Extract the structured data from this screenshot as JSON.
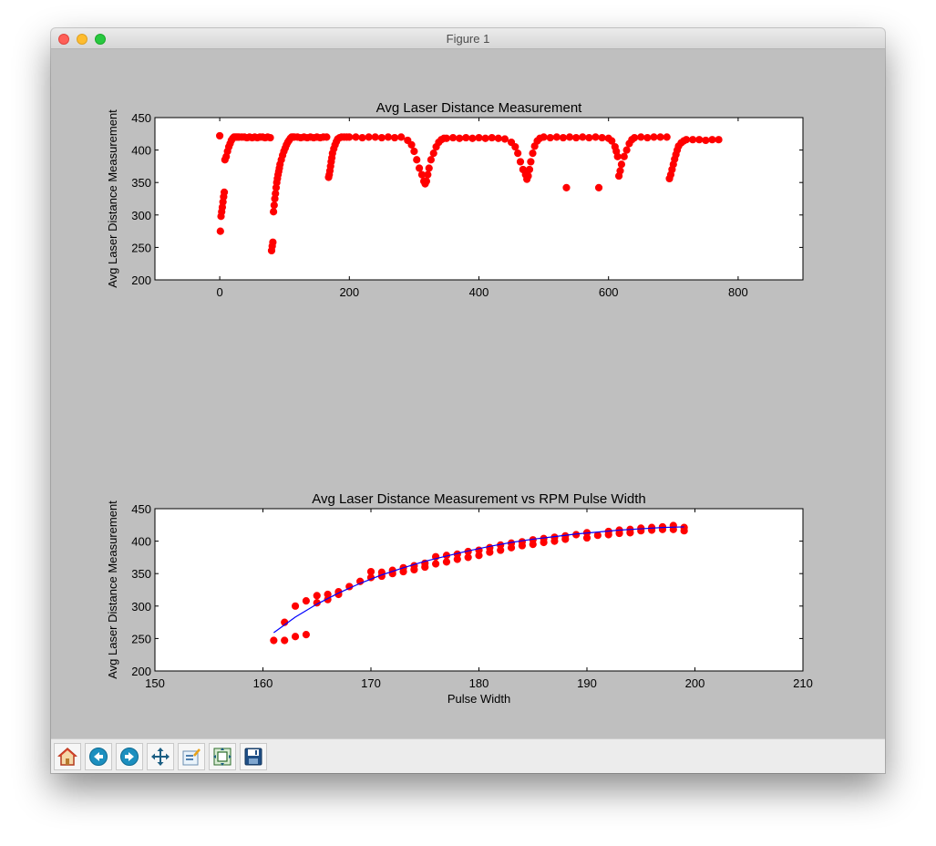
{
  "window": {
    "title": "Figure 1",
    "traffic_lights": {
      "close": "#ff5f57",
      "minimize": "#febc2e",
      "zoom": "#28c840"
    }
  },
  "colors": {
    "figure_bg": "#bfbfbf",
    "axes_bg": "#ffffff",
    "marker": "#ff0000",
    "fit_line": "#0000ff"
  },
  "toolbar": {
    "buttons": [
      {
        "name": "home",
        "icon": "home-icon"
      },
      {
        "name": "back",
        "icon": "back-arrow-icon"
      },
      {
        "name": "forward",
        "icon": "forward-arrow-icon"
      },
      {
        "name": "pan",
        "icon": "pan-arrows-icon"
      },
      {
        "name": "zoom",
        "icon": "zoom-rect-icon"
      },
      {
        "name": "subplots",
        "icon": "subplots-config-icon"
      },
      {
        "name": "save",
        "icon": "save-floppy-icon"
      }
    ]
  },
  "chart_data": [
    {
      "type": "scatter",
      "title": "Avg Laser Distance Measurement",
      "xlabel": "",
      "ylabel": "Avg Laser Distance Measurement",
      "xlim": [
        -100,
        900
      ],
      "ylim": [
        200,
        450
      ],
      "xticks": [
        "0",
        "200",
        "400",
        "600",
        "800"
      ],
      "xtick_values": [
        0,
        200,
        400,
        600,
        800
      ],
      "yticks": [
        "200",
        "250",
        "300",
        "350",
        "400",
        "450"
      ],
      "ytick_values": [
        200,
        250,
        300,
        350,
        400,
        450
      ],
      "grid": false,
      "series": [
        {
          "marker": "circle",
          "color": "#ff0000",
          "x": [
            0,
            1,
            2,
            3,
            4,
            5,
            6,
            7,
            8,
            10,
            12,
            14,
            16,
            18,
            20,
            22,
            24,
            26,
            28,
            30,
            34,
            38,
            42,
            46,
            50,
            54,
            58,
            62,
            66,
            70,
            74,
            78,
            80,
            81,
            82,
            83,
            84,
            85,
            86,
            87,
            88,
            89,
            90,
            91,
            92,
            93,
            95,
            97,
            99,
            101,
            103,
            105,
            107,
            109,
            111,
            113,
            115,
            120,
            125,
            130,
            135,
            140,
            145,
            150,
            155,
            160,
            165,
            168,
            169,
            170,
            171,
            172,
            173,
            174,
            176,
            178,
            180,
            182,
            185,
            188,
            192,
            196,
            200,
            210,
            220,
            230,
            240,
            250,
            260,
            270,
            280,
            290,
            296,
            300,
            304,
            308,
            312,
            315,
            317,
            319,
            321,
            323,
            326,
            330,
            334,
            338,
            342,
            346,
            350,
            360,
            370,
            380,
            390,
            400,
            410,
            420,
            430,
            440,
            450,
            456,
            460,
            464,
            468,
            472,
            474,
            476,
            478,
            480,
            483,
            486,
            490,
            494,
            500,
            510,
            520,
            530,
            540,
            550,
            560,
            570,
            580,
            590,
            600,
            605,
            610,
            612,
            614,
            616,
            618,
            620,
            624,
            628,
            632,
            636,
            640,
            650,
            660,
            670,
            680,
            690,
            694,
            696,
            698,
            700,
            702,
            704,
            706,
            708,
            712,
            716,
            720,
            730,
            740,
            750,
            760,
            770,
            535,
            585
          ],
          "y": [
            422,
            275,
            298,
            305,
            312,
            320,
            328,
            335,
            385,
            390,
            398,
            405,
            410,
            415,
            418,
            420,
            420,
            420,
            420,
            420,
            420,
            420,
            419,
            420,
            419,
            420,
            419,
            420,
            420,
            419,
            420,
            419,
            245,
            252,
            258,
            305,
            315,
            325,
            333,
            342,
            350,
            356,
            362,
            367,
            372,
            378,
            385,
            392,
            398,
            403,
            408,
            412,
            415,
            418,
            420,
            420,
            420,
            420,
            419,
            420,
            419,
            420,
            419,
            420,
            419,
            420,
            420,
            358,
            362,
            368,
            375,
            382,
            388,
            395,
            402,
            408,
            413,
            417,
            419,
            420,
            420,
            420,
            420,
            420,
            419,
            420,
            420,
            419,
            420,
            419,
            420,
            415,
            408,
            398,
            385,
            372,
            362,
            352,
            348,
            352,
            362,
            372,
            385,
            395,
            405,
            412,
            416,
            418,
            418,
            419,
            418,
            419,
            418,
            419,
            418,
            419,
            418,
            417,
            412,
            405,
            395,
            382,
            370,
            362,
            355,
            360,
            370,
            382,
            395,
            406,
            414,
            418,
            420,
            419,
            420,
            419,
            420,
            419,
            420,
            419,
            420,
            419,
            418,
            414,
            405,
            398,
            390,
            360,
            368,
            378,
            390,
            400,
            410,
            416,
            419,
            420,
            419,
            420,
            420,
            420,
            356,
            362,
            370,
            378,
            386,
            393,
            400,
            406,
            411,
            414,
            416,
            416,
            416,
            415,
            416,
            416,
            342,
            342
          ]
        }
      ]
    },
    {
      "type": "scatter",
      "title": "Avg Laser Distance Measurement vs RPM Pulse Width",
      "xlabel": "Pulse Width",
      "ylabel": "Avg Laser Distance Measurement",
      "xlim": [
        150,
        210
      ],
      "ylim": [
        200,
        450
      ],
      "xticks": [
        "150",
        "160",
        "170",
        "180",
        "190",
        "200",
        "210"
      ],
      "xtick_values": [
        150,
        160,
        170,
        180,
        190,
        200,
        210
      ],
      "yticks": [
        "200",
        "250",
        "300",
        "350",
        "400",
        "450"
      ],
      "ytick_values": [
        200,
        250,
        300,
        350,
        400,
        450
      ],
      "grid": false,
      "series": [
        {
          "marker": "circle",
          "color": "#ff0000",
          "x": [
            161,
            162,
            162,
            163,
            163,
            164,
            164,
            165,
            165,
            166,
            166,
            167,
            167,
            168,
            169,
            170,
            170,
            171,
            171,
            172,
            172,
            173,
            173,
            174,
            174,
            175,
            175,
            176,
            176,
            177,
            177,
            178,
            178,
            179,
            179,
            180,
            180,
            181,
            181,
            182,
            182,
            183,
            183,
            184,
            184,
            185,
            185,
            186,
            186,
            187,
            187,
            188,
            188,
            189,
            190,
            190,
            191,
            192,
            192,
            193,
            193,
            194,
            194,
            195,
            195,
            196,
            196,
            197,
            197,
            198,
            198,
            199,
            199
          ],
          "y": [
            247,
            247,
            275,
            253,
            300,
            256,
            308,
            305,
            316,
            310,
            318,
            318,
            322,
            330,
            338,
            344,
            353,
            346,
            352,
            350,
            355,
            353,
            359,
            356,
            362,
            360,
            366,
            365,
            376,
            368,
            378,
            372,
            380,
            375,
            384,
            378,
            386,
            383,
            390,
            386,
            394,
            390,
            397,
            393,
            399,
            395,
            402,
            398,
            404,
            400,
            406,
            403,
            408,
            410,
            405,
            413,
            409,
            410,
            415,
            412,
            417,
            413,
            418,
            416,
            420,
            417,
            421,
            418,
            422,
            418,
            424,
            416,
            421
          ]
        },
        {
          "name": "fit",
          "line": true,
          "color": "#0000ff",
          "x": [
            161,
            163,
            165,
            167,
            169,
            171,
            173,
            175,
            177,
            179,
            181,
            183,
            185,
            187,
            189,
            191,
            193,
            195,
            197,
            199
          ],
          "y": [
            259,
            283,
            303,
            320,
            335,
            348,
            359,
            369,
            377,
            385,
            392,
            398,
            403,
            407,
            411,
            414,
            417,
            419,
            421,
            422
          ]
        }
      ]
    }
  ]
}
